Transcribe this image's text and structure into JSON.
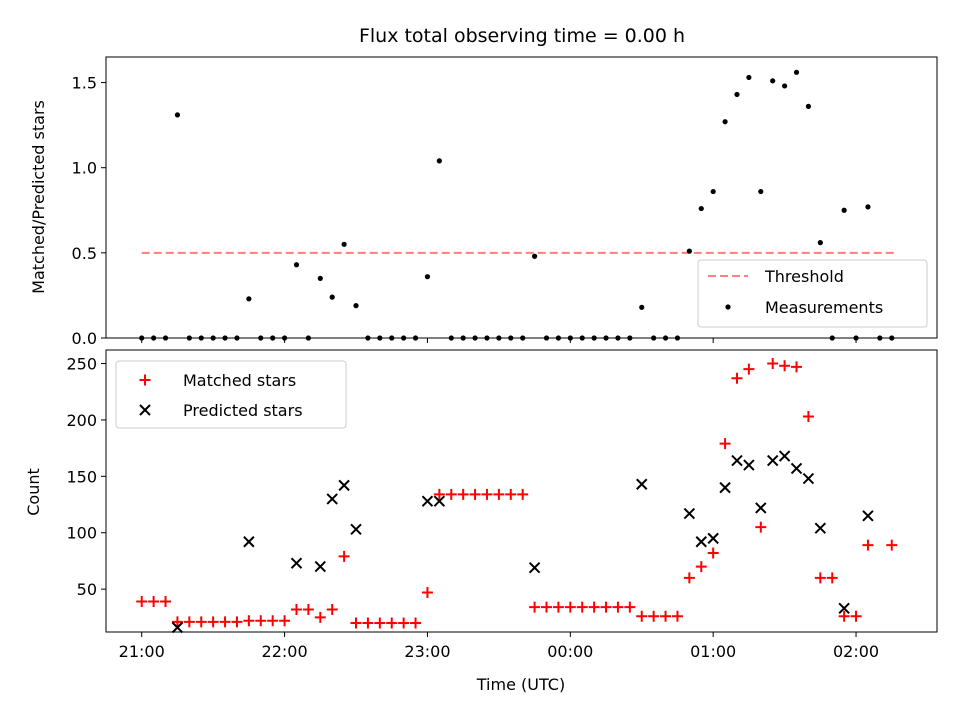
{
  "chart_data": [
    {
      "type": "scatter",
      "title": "Flux total observing time = 0.00 h",
      "ylabel": "Matched/Predicted stars",
      "xlim": [
        "20:45",
        "02:34"
      ],
      "ylim": [
        0,
        1.65
      ],
      "yticks": [
        "0.0",
        "0.5",
        "1.0",
        "1.5"
      ],
      "legend_position": "lower-right",
      "threshold": {
        "name": "Threshold",
        "value": 0.5,
        "x_range": [
          "21:00",
          "02:17"
        ],
        "color": "#ff7f7f",
        "style": "dashed"
      },
      "series": [
        {
          "name": "Measurements",
          "color": "#000000",
          "marker": "dot",
          "points": [
            [
              "21:00",
              0
            ],
            [
              "21:05",
              0
            ],
            [
              "21:10",
              0
            ],
            [
              "21:15",
              1.31
            ],
            [
              "21:20",
              0
            ],
            [
              "21:25",
              0
            ],
            [
              "21:30",
              0
            ],
            [
              "21:35",
              0
            ],
            [
              "21:40",
              0
            ],
            [
              "21:45",
              0.23
            ],
            [
              "21:50",
              0
            ],
            [
              "21:55",
              0
            ],
            [
              "22:00",
              0
            ],
            [
              "22:05",
              0.43
            ],
            [
              "22:10",
              0
            ],
            [
              "22:15",
              0.35
            ],
            [
              "22:20",
              0.24
            ],
            [
              "22:25",
              0.55
            ],
            [
              "22:30",
              0.19
            ],
            [
              "22:35",
              0
            ],
            [
              "22:40",
              0
            ],
            [
              "22:45",
              0
            ],
            [
              "22:50",
              0
            ],
            [
              "22:55",
              0
            ],
            [
              "23:00",
              0.36
            ],
            [
              "23:05",
              1.04
            ],
            [
              "23:10",
              0
            ],
            [
              "23:15",
              0
            ],
            [
              "23:20",
              0
            ],
            [
              "23:25",
              0
            ],
            [
              "23:30",
              0
            ],
            [
              "23:35",
              0
            ],
            [
              "23:40",
              0
            ],
            [
              "23:45",
              0.48
            ],
            [
              "23:50",
              0
            ],
            [
              "23:55",
              0
            ],
            [
              "00:00",
              0
            ],
            [
              "00:05",
              0
            ],
            [
              "00:10",
              0
            ],
            [
              "00:15",
              0
            ],
            [
              "00:20",
              0
            ],
            [
              "00:25",
              0
            ],
            [
              "00:30",
              0.18
            ],
            [
              "00:35",
              0
            ],
            [
              "00:40",
              0
            ],
            [
              "00:45",
              0
            ],
            [
              "00:50",
              0.51
            ],
            [
              "00:55",
              0.76
            ],
            [
              "01:00",
              0.86
            ],
            [
              "01:05",
              1.27
            ],
            [
              "01:10",
              1.43
            ],
            [
              "01:15",
              1.53
            ],
            [
              "01:20",
              0.86
            ],
            [
              "01:25",
              1.51
            ],
            [
              "01:30",
              1.48
            ],
            [
              "01:35",
              1.56
            ],
            [
              "01:40",
              1.36
            ],
            [
              "01:45",
              0.56
            ],
            [
              "01:50",
              0
            ],
            [
              "01:55",
              0.75
            ],
            [
              "02:00",
              0
            ],
            [
              "02:05",
              0.77
            ],
            [
              "02:10",
              0
            ],
            [
              "02:15",
              0
            ]
          ]
        }
      ]
    },
    {
      "type": "scatter",
      "xlabel": "Time (UTC)",
      "ylabel": "Count",
      "xlim": [
        "20:45",
        "02:34"
      ],
      "ylim": [
        12,
        262
      ],
      "yticks": [
        "50",
        "100",
        "150",
        "200",
        "250"
      ],
      "xticks": [
        "21:00",
        "22:00",
        "23:00",
        "00:00",
        "01:00",
        "02:00"
      ],
      "legend_position": "upper-left",
      "series": [
        {
          "name": "Matched stars",
          "color": "#ff0000",
          "marker": "plus",
          "points": [
            [
              "21:00",
              39
            ],
            [
              "21:05",
              39
            ],
            [
              "21:10",
              39
            ],
            [
              "21:15",
              21
            ],
            [
              "21:20",
              21
            ],
            [
              "21:25",
              21
            ],
            [
              "21:30",
              21
            ],
            [
              "21:35",
              21
            ],
            [
              "21:40",
              21
            ],
            [
              "21:45",
              22
            ],
            [
              "21:50",
              22
            ],
            [
              "21:55",
              22
            ],
            [
              "22:00",
              22
            ],
            [
              "22:05",
              32
            ],
            [
              "22:10",
              32
            ],
            [
              "22:15",
              25
            ],
            [
              "22:20",
              32
            ],
            [
              "22:25",
              79
            ],
            [
              "22:30",
              20
            ],
            [
              "22:35",
              20
            ],
            [
              "22:40",
              20
            ],
            [
              "22:45",
              20
            ],
            [
              "22:50",
              20
            ],
            [
              "22:55",
              20
            ],
            [
              "23:00",
              47
            ],
            [
              "23:05",
              134
            ],
            [
              "23:10",
              134
            ],
            [
              "23:15",
              134
            ],
            [
              "23:20",
              134
            ],
            [
              "23:25",
              134
            ],
            [
              "23:30",
              134
            ],
            [
              "23:35",
              134
            ],
            [
              "23:40",
              134
            ],
            [
              "23:45",
              34
            ],
            [
              "23:50",
              34
            ],
            [
              "23:55",
              34
            ],
            [
              "00:00",
              34
            ],
            [
              "00:05",
              34
            ],
            [
              "00:10",
              34
            ],
            [
              "00:15",
              34
            ],
            [
              "00:20",
              34
            ],
            [
              "00:25",
              34
            ],
            [
              "00:30",
              26
            ],
            [
              "00:35",
              26
            ],
            [
              "00:40",
              26
            ],
            [
              "00:45",
              26
            ],
            [
              "00:50",
              60
            ],
            [
              "00:55",
              70
            ],
            [
              "01:00",
              82
            ],
            [
              "01:05",
              179
            ],
            [
              "01:10",
              237
            ],
            [
              "01:15",
              245
            ],
            [
              "01:20",
              105
            ],
            [
              "01:25",
              250
            ],
            [
              "01:30",
              248
            ],
            [
              "01:35",
              247
            ],
            [
              "01:40",
              203
            ],
            [
              "01:45",
              60
            ],
            [
              "01:50",
              60
            ],
            [
              "01:55",
              26
            ],
            [
              "02:00",
              26
            ],
            [
              "02:05",
              89
            ],
            [
              "02:15",
              89
            ]
          ]
        },
        {
          "name": "Predicted stars",
          "color": "#000000",
          "marker": "x",
          "points": [
            [
              "21:15",
              16
            ],
            [
              "21:45",
              92
            ],
            [
              "22:05",
              73
            ],
            [
              "22:15",
              70
            ],
            [
              "22:20",
              130
            ],
            [
              "22:25",
              142
            ],
            [
              "22:30",
              103
            ],
            [
              "23:00",
              128
            ],
            [
              "23:05",
              128
            ],
            [
              "23:45",
              69
            ],
            [
              "00:30",
              143
            ],
            [
              "00:50",
              117
            ],
            [
              "00:55",
              92
            ],
            [
              "01:00",
              95
            ],
            [
              "01:05",
              140
            ],
            [
              "01:10",
              164
            ],
            [
              "01:15",
              160
            ],
            [
              "01:20",
              122
            ],
            [
              "01:25",
              164
            ],
            [
              "01:30",
              168
            ],
            [
              "01:35",
              157
            ],
            [
              "01:40",
              148
            ],
            [
              "01:45",
              104
            ],
            [
              "01:55",
              33
            ],
            [
              "02:05",
              115
            ]
          ]
        }
      ]
    }
  ]
}
